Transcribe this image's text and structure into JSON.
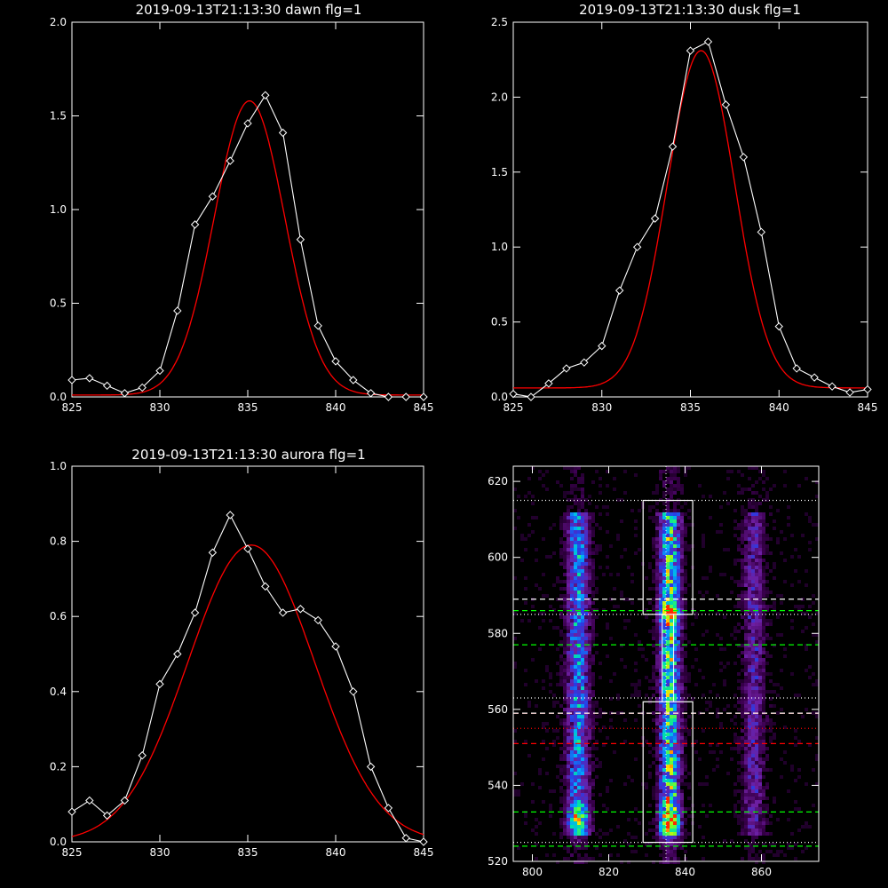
{
  "colors": {
    "background": "#000000",
    "axes": "#ffffff",
    "data": "#ffffff",
    "fit": "#ff0000",
    "green": "#00ff00"
  },
  "chart_data": [
    {
      "type": "line",
      "title": "2019-09-13T21:13:30 dawn flg=1",
      "xlim": [
        825,
        845
      ],
      "ylim": [
        0,
        2.0
      ],
      "xticks": [
        "825",
        "830",
        "835",
        "840",
        "845"
      ],
      "xtick_values": [
        825,
        830,
        835,
        840,
        845
      ],
      "yticks": [
        "0.0",
        "0.5",
        "1.0",
        "1.5",
        "2.0"
      ],
      "ytick_values": [
        0,
        0.5,
        1.0,
        1.5,
        2.0
      ],
      "series": [
        {
          "x": [
            825,
            826,
            827,
            828,
            829,
            830,
            831,
            832,
            833,
            834,
            835,
            836,
            837,
            838,
            839,
            840,
            841,
            842,
            843,
            844,
            845
          ],
          "values": [
            0.09,
            0.1,
            0.06,
            0.02,
            0.05,
            0.14,
            0.46,
            0.92,
            1.07,
            1.26,
            1.46,
            1.61,
            1.41,
            0.84,
            0.38,
            0.19,
            0.09,
            0.02,
            0.0,
            0.0,
            0.0
          ]
        },
        {
          "fit": {
            "amp": 1.57,
            "center": 835.1,
            "sigma": 2.0,
            "base": 0.01
          }
        }
      ]
    },
    {
      "type": "line",
      "title": "2019-09-13T21:13:30 dusk flg=1",
      "xlim": [
        825,
        845
      ],
      "ylim": [
        0,
        2.5
      ],
      "xticks": [
        "825",
        "830",
        "835",
        "840",
        "845"
      ],
      "xtick_values": [
        825,
        830,
        835,
        840,
        845
      ],
      "yticks": [
        "0.0",
        "0.5",
        "1.0",
        "1.5",
        "2.0",
        "2.5"
      ],
      "ytick_values": [
        0,
        0.5,
        1.0,
        1.5,
        2.0,
        2.5
      ],
      "series": [
        {
          "x": [
            825,
            826,
            827,
            828,
            829,
            830,
            831,
            832,
            833,
            834,
            835,
            836,
            837,
            838,
            839,
            840,
            841,
            842,
            843,
            844,
            845
          ],
          "values": [
            0.02,
            0.0,
            0.09,
            0.19,
            0.23,
            0.34,
            0.71,
            1.0,
            1.19,
            1.67,
            2.31,
            2.37,
            1.95,
            1.6,
            1.1,
            0.47,
            0.19,
            0.13,
            0.07,
            0.03,
            0.05
          ]
        },
        {
          "fit": {
            "amp": 2.25,
            "center": 835.6,
            "sigma": 1.9,
            "base": 0.06
          }
        }
      ]
    },
    {
      "type": "line",
      "title": "2019-09-13T21:13:30 aurora flg=1",
      "xlim": [
        825,
        845
      ],
      "ylim": [
        0,
        1.0
      ],
      "xticks": [
        "825",
        "830",
        "835",
        "840",
        "845"
      ],
      "xtick_values": [
        825,
        830,
        835,
        840,
        845
      ],
      "yticks": [
        "0.0",
        "0.2",
        "0.4",
        "0.6",
        "0.8",
        "1.0"
      ],
      "ytick_values": [
        0,
        0.2,
        0.4,
        0.6,
        0.8,
        1.0
      ],
      "series": [
        {
          "x": [
            825,
            826,
            827,
            828,
            829,
            830,
            831,
            832,
            833,
            834,
            835,
            836,
            837,
            838,
            839,
            840,
            841,
            842,
            843,
            844,
            845
          ],
          "values": [
            0.08,
            0.11,
            0.07,
            0.11,
            0.23,
            0.42,
            0.5,
            0.61,
            0.77,
            0.87,
            0.78,
            0.68,
            0.61,
            0.62,
            0.59,
            0.52,
            0.4,
            0.2,
            0.09,
            0.01,
            0.0
          ]
        },
        {
          "fit": {
            "amp": 0.79,
            "center": 835.2,
            "sigma": 3.6,
            "base": 0.0
          }
        }
      ]
    },
    {
      "type": "heatmap",
      "xlim": [
        795,
        875
      ],
      "ylim": [
        520,
        624
      ],
      "xticks": [
        "800",
        "820",
        "840",
        "860"
      ],
      "xtick_values": [
        800,
        820,
        840,
        860
      ],
      "yticks": [
        "520",
        "540",
        "560",
        "580",
        "600",
        "620"
      ],
      "ytick_values": [
        520,
        540,
        560,
        580,
        600,
        620
      ],
      "columns": [
        812,
        836,
        858
      ],
      "boxes": [
        {
          "x": [
            829,
            842
          ],
          "y": [
            585,
            615
          ]
        },
        {
          "x": [
            829,
            842
          ],
          "y": [
            525,
            562
          ]
        }
      ],
      "vline": 835,
      "hlines_dotted_white": [
        615,
        585,
        563,
        525
      ],
      "hlines_dashed_white": [
        589,
        559
      ],
      "hlines_dashed_green": [
        586,
        577,
        533,
        524
      ],
      "hlines_dashed_red": [
        551,
        559
      ],
      "hlines_dotted_red": [
        555
      ]
    }
  ]
}
